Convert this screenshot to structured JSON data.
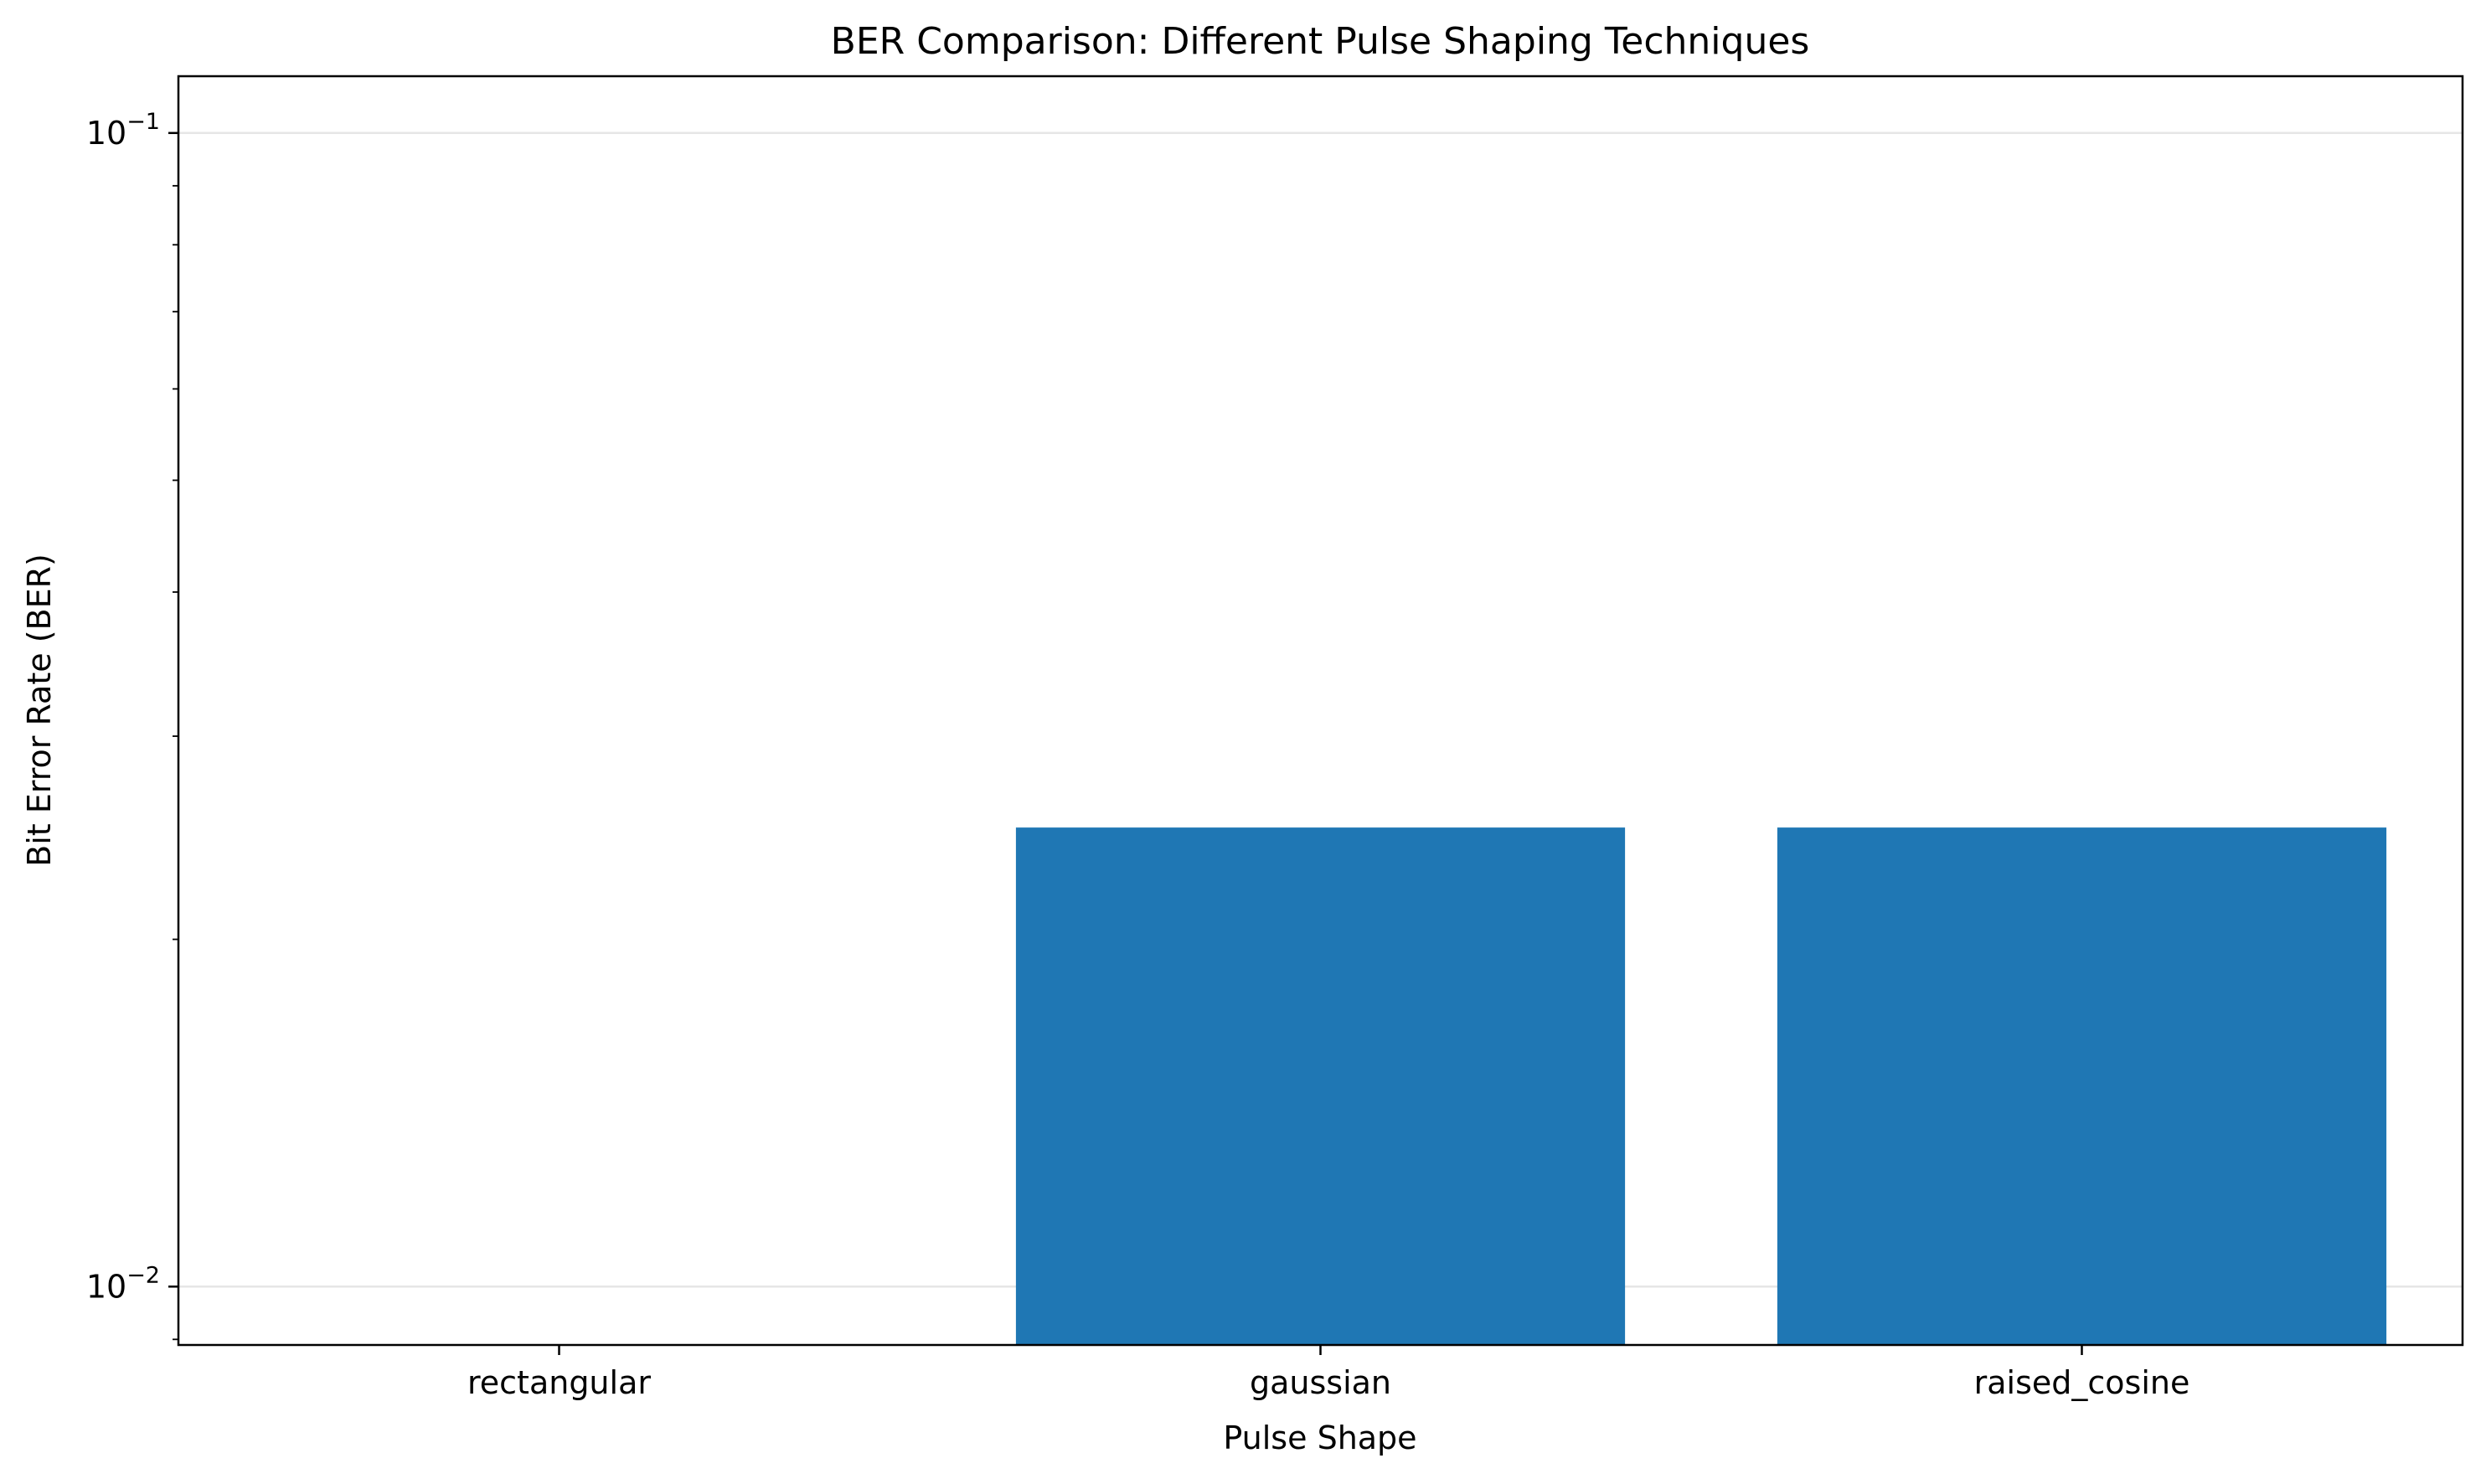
{
  "chart_data": {
    "type": "bar",
    "title": "BER Comparison: Different Pulse Shaping Techniques",
    "xlabel": "Pulse Shape",
    "ylabel": "Bit Error Rate (BER)",
    "categories": [
      "rectangular",
      "gaussian",
      "raised_cosine"
    ],
    "values": [
      0.0,
      0.025,
      0.025
    ],
    "yscale": "log",
    "ylim": [
      0.0089,
      0.112
    ],
    "yticks": [
      {
        "value": 0.1,
        "mantissa": "10",
        "exponent": "−1"
      },
      {
        "value": 0.01,
        "mantissa": "10",
        "exponent": "−2"
      }
    ],
    "grid": "y-major",
    "bar_color": "#1f77b4",
    "legend": "none"
  }
}
